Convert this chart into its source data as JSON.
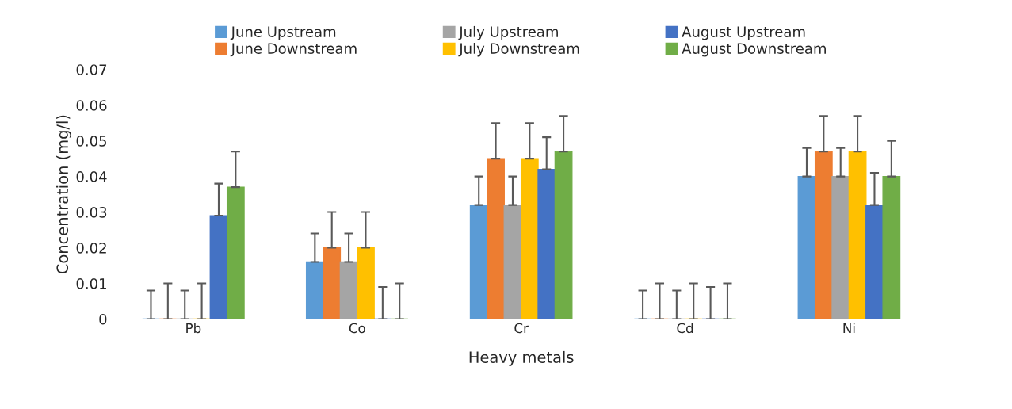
{
  "chart_data": {
    "type": "bar",
    "xlabel": "Heavy metals",
    "ylabel": "Concentration (mg/l)",
    "categories": [
      "Pb",
      "Co",
      "Cr",
      "Cd",
      "Ni"
    ],
    "series": [
      {
        "name": "June Upstream",
        "color": "#5b9bd5",
        "values": [
          0,
          0.016,
          0.032,
          0,
          0.04
        ],
        "errors": [
          [
            0,
            0.008
          ],
          [
            0.016,
            0.024
          ],
          [
            0.032,
            0.04
          ],
          [
            0,
            0.008
          ],
          [
            0.04,
            0.048
          ]
        ]
      },
      {
        "name": "June Downstream",
        "color": "#ed7d31",
        "values": [
          0,
          0.02,
          0.045,
          0,
          0.047
        ],
        "errors": [
          [
            0,
            0.01
          ],
          [
            0.02,
            0.03
          ],
          [
            0.045,
            0.055
          ],
          [
            0,
            0.01
          ],
          [
            0.047,
            0.057
          ]
        ]
      },
      {
        "name": "July Upstream",
        "color": "#a5a5a5",
        "values": [
          0,
          0.016,
          0.032,
          0,
          0.04
        ],
        "errors": [
          [
            0,
            0.008
          ],
          [
            0.016,
            0.024
          ],
          [
            0.032,
            0.04
          ],
          [
            0,
            0.008
          ],
          [
            0.04,
            0.048
          ]
        ]
      },
      {
        "name": "July Downstream",
        "color": "#ffc000",
        "values": [
          0,
          0.02,
          0.045,
          0,
          0.047
        ],
        "errors": [
          [
            0,
            0.01
          ],
          [
            0.02,
            0.03
          ],
          [
            0.045,
            0.055
          ],
          [
            0,
            0.01
          ],
          [
            0.047,
            0.057
          ]
        ]
      },
      {
        "name": "August Upstream",
        "color": "#4472c4",
        "values": [
          0.029,
          0,
          0.042,
          0,
          0.032
        ],
        "errors": [
          [
            0.029,
            0.038
          ],
          [
            0,
            0.009
          ],
          [
            0.042,
            0.051
          ],
          [
            0,
            0.009
          ],
          [
            0.032,
            0.041
          ]
        ]
      },
      {
        "name": "August Downstream",
        "color": "#70ad47",
        "values": [
          0.037,
          0,
          0.047,
          0,
          0.04
        ],
        "errors": [
          [
            0.037,
            0.047
          ],
          [
            0,
            0.01
          ],
          [
            0.047,
            0.057
          ],
          [
            0,
            0.01
          ],
          [
            0.04,
            0.05
          ]
        ]
      }
    ],
    "ylim": [
      0,
      0.07
    ],
    "yticks": [
      0,
      0.01,
      0.02,
      0.03,
      0.04,
      0.05,
      0.06,
      0.07
    ],
    "grid": false,
    "legend": "top"
  }
}
